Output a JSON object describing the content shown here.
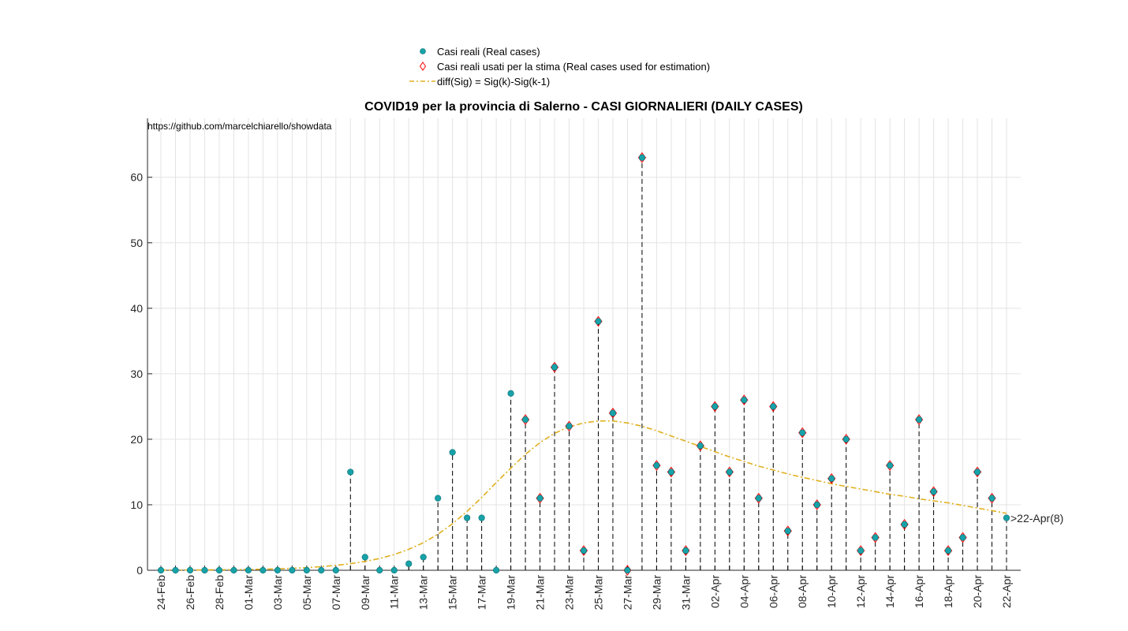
{
  "chart_data": {
    "type": "scatter",
    "title": "COVID19 per la provincia di Salerno - CASI GIORNALIERI (DAILY CASES)",
    "source_note": "https://github.com/marcelchiarello/showdata",
    "xlabel": "",
    "ylabel": "",
    "ylim": [
      0,
      69
    ],
    "yticks": [
      0,
      10,
      20,
      30,
      40,
      50,
      60
    ],
    "grid": true,
    "legend_position": "top-center",
    "legend": [
      "Casi reali (Real cases)",
      "Casi reali usati per la stima (Real cases used for estimation)",
      "diff(Sig) = Sig(k)-Sig(k-1)"
    ],
    "x_tick_labels": [
      "24-Feb",
      "26-Feb",
      "28-Feb",
      "01-Mar",
      "03-Mar",
      "05-Mar",
      "07-Mar",
      "09-Mar",
      "11-Mar",
      "13-Mar",
      "15-Mar",
      "17-Mar",
      "19-Mar",
      "21-Mar",
      "23-Mar",
      "25-Mar",
      "27-Mar",
      "29-Mar",
      "31-Mar",
      "02-Apr",
      "04-Apr",
      "06-Apr",
      "08-Apr",
      "10-Apr",
      "12-Apr",
      "14-Apr",
      "16-Apr",
      "18-Apr",
      "20-Apr",
      "22-Apr"
    ],
    "dates": [
      "24-Feb",
      "25-Feb",
      "26-Feb",
      "27-Feb",
      "28-Feb",
      "29-Feb",
      "01-Mar",
      "02-Mar",
      "03-Mar",
      "04-Mar",
      "05-Mar",
      "06-Mar",
      "07-Mar",
      "08-Mar",
      "09-Mar",
      "10-Mar",
      "11-Mar",
      "12-Mar",
      "13-Mar",
      "14-Mar",
      "15-Mar",
      "16-Mar",
      "17-Mar",
      "18-Mar",
      "19-Mar",
      "20-Mar",
      "21-Mar",
      "22-Mar",
      "23-Mar",
      "24-Mar",
      "25-Mar",
      "26-Mar",
      "27-Mar",
      "28-Mar",
      "29-Mar",
      "30-Mar",
      "31-Mar",
      "01-Apr",
      "02-Apr",
      "03-Apr",
      "04-Apr",
      "05-Apr",
      "06-Apr",
      "07-Apr",
      "08-Apr",
      "09-Apr",
      "10-Apr",
      "11-Apr",
      "12-Apr",
      "13-Apr",
      "14-Apr",
      "15-Apr",
      "16-Apr",
      "17-Apr",
      "18-Apr",
      "19-Apr",
      "20-Apr",
      "21-Apr",
      "22-Apr"
    ],
    "real_cases": [
      0,
      0,
      0,
      0,
      0,
      0,
      0,
      0,
      0,
      0,
      0,
      0,
      0,
      15,
      2,
      0,
      0,
      1,
      2,
      11,
      18,
      8,
      8,
      0,
      27,
      23,
      11,
      31,
      22,
      3,
      38,
      24,
      0,
      63,
      16,
      15,
      3,
      19,
      25,
      15,
      26,
      11,
      25,
      6,
      21,
      10,
      14,
      20,
      3,
      5,
      16,
      7,
      23,
      12,
      3,
      5,
      15,
      11,
      8
    ],
    "estimation_start_date": "20-Mar",
    "fit_curve": [
      0.02,
      0.03,
      0.04,
      0.05,
      0.07,
      0.09,
      0.12,
      0.16,
      0.22,
      0.3,
      0.4,
      0.55,
      0.75,
      1.0,
      1.35,
      1.8,
      2.4,
      3.2,
      4.2,
      5.5,
      7.1,
      9.0,
      11.1,
      13.4,
      15.6,
      17.7,
      19.5,
      20.9,
      21.9,
      22.5,
      22.8,
      22.8,
      22.5,
      22.0,
      21.3,
      20.5,
      19.7,
      18.9,
      18.1,
      17.3,
      16.6,
      15.9,
      15.3,
      14.7,
      14.2,
      13.7,
      13.2,
      12.8,
      12.4,
      12.0,
      11.6,
      11.3,
      10.9,
      10.6,
      10.3,
      9.9,
      9.5,
      9.1,
      8.7
    ],
    "annotation": ">22-Apr(8)",
    "colors": {
      "real_marker": "#17a2a8",
      "estimation_marker": "#ff0000",
      "fit_line": "#e0b020",
      "stem": "#000000",
      "grid": "#e3e3e3"
    }
  }
}
